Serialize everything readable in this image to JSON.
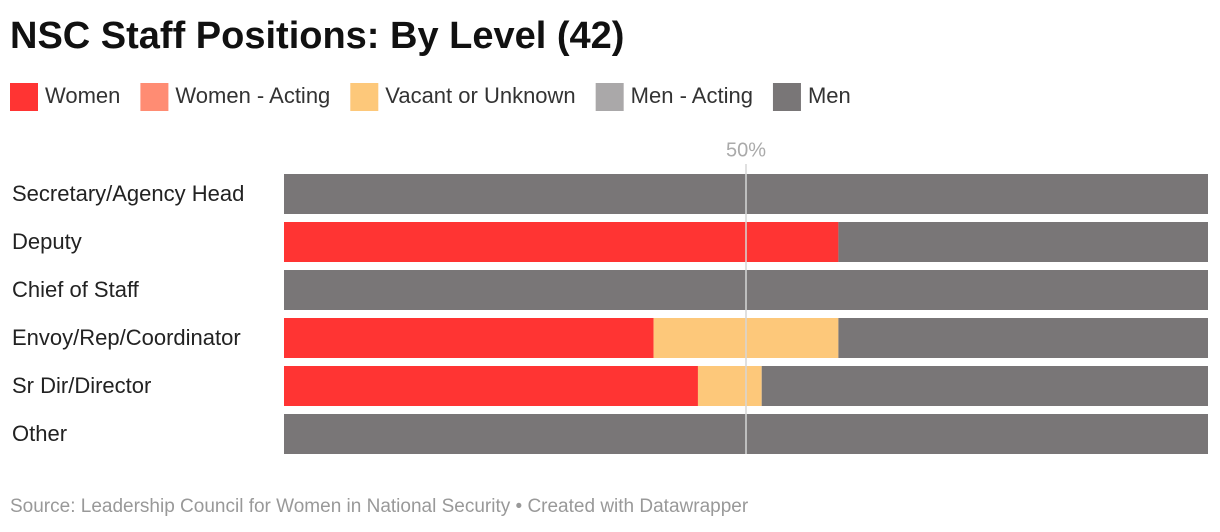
{
  "chart_data": {
    "type": "stacked_bar_horizontal",
    "title": "NSC Staff Positions: By Level (42)",
    "source": "Source: Leadership Council for Women in National Security • Created with Datawrapper",
    "categories": [
      "Secretary/Agency Head",
      "Deputy",
      "Chief of Staff",
      "Envoy/Rep/Coordinator",
      "Sr Dir/Director",
      "Other"
    ],
    "series": [
      {
        "name": "Women",
        "color": "#ff3433",
        "values": [
          0,
          60,
          0,
          40,
          44.8,
          0
        ]
      },
      {
        "name": "Women - Acting",
        "color": "#ff8c73",
        "values": [
          0,
          0,
          0,
          0,
          0,
          0
        ]
      },
      {
        "name": "Vacant or Unknown",
        "color": "#fdc87a",
        "values": [
          0,
          0,
          0,
          20,
          6.9,
          0
        ]
      },
      {
        "name": "Men - Acting",
        "color": "#aaa8a9",
        "values": [
          0,
          0,
          0,
          0,
          0,
          0
        ]
      },
      {
        "name": "Men",
        "color": "#797677",
        "values": [
          100,
          40,
          100,
          40,
          48.3,
          100
        ]
      }
    ],
    "xlim": [
      0,
      100
    ],
    "xticks": [
      {
        "value": 50,
        "label": "50%"
      }
    ],
    "grid": true,
    "legend": "top"
  }
}
